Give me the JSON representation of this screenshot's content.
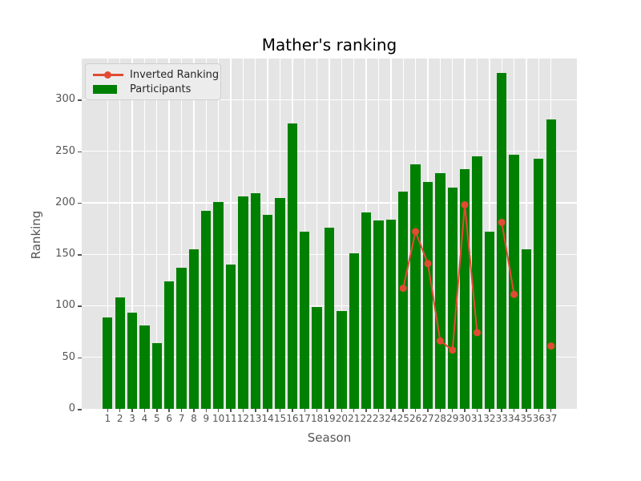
{
  "chart_data": {
    "type": "bar",
    "title": "Mather's ranking",
    "xlabel": "Season",
    "ylabel": "Ranking",
    "categories": [
      "1",
      "2",
      "3",
      "4",
      "5",
      "6",
      "7",
      "8",
      "9",
      "10",
      "11",
      "12",
      "13",
      "14",
      "15",
      "16",
      "17",
      "18",
      "19",
      "20",
      "21",
      "22",
      "23",
      "24",
      "25",
      "26",
      "27",
      "28",
      "29",
      "30",
      "31",
      "32",
      "33",
      "34",
      "35",
      "36",
      "37"
    ],
    "series": [
      {
        "name": "Inverted Ranking",
        "type": "line",
        "color": "#e24a33",
        "values": [
          null,
          null,
          null,
          null,
          null,
          null,
          null,
          null,
          null,
          null,
          null,
          null,
          null,
          null,
          null,
          null,
          null,
          null,
          null,
          null,
          null,
          null,
          null,
          null,
          117,
          172,
          141,
          66,
          57,
          198,
          74,
          null,
          181,
          111,
          null,
          null,
          61
        ]
      },
      {
        "name": "Participants",
        "type": "bar",
        "color": "#008000",
        "values": [
          89,
          108,
          93,
          81,
          64,
          124,
          137,
          155,
          192,
          201,
          140,
          206,
          209,
          188,
          205,
          277,
          172,
          99,
          176,
          95,
          151,
          191,
          183,
          184,
          211,
          237,
          220,
          229,
          215,
          233,
          245,
          172,
          326,
          247,
          155,
          243,
          281
        ]
      }
    ],
    "ylim": [
      0,
      340
    ],
    "yticks": [
      0,
      50,
      100,
      150,
      200,
      250,
      300
    ],
    "grid": true,
    "legend_position": "upper left",
    "plot_bg": "#e5e5e5",
    "grid_color": "#ffffff",
    "tick_color": "#555555"
  }
}
